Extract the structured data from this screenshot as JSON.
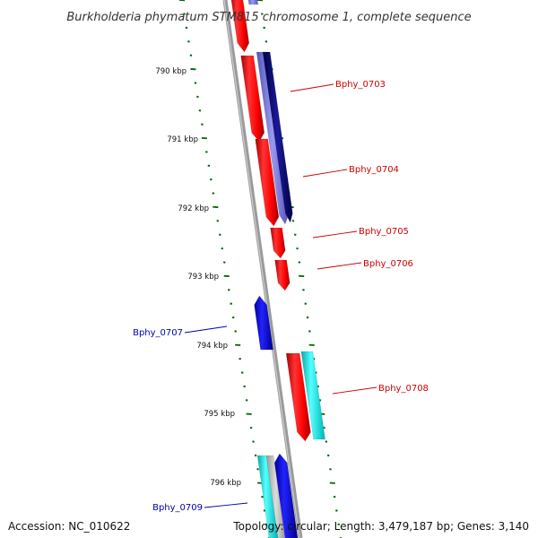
{
  "title": "Burkholderia phymatum STM815 chromosome 1, complete sequence",
  "accession_text": "Accession: NC_010622",
  "topology_text": "Topology: circular; Length: 3,479,187 bp; Genes: 3,140",
  "colors": {
    "forward_gene": "#ff0000",
    "forward_gene_dark": "#cc0000",
    "reverse_gene": "#0000ee",
    "cds_cyan": "#00e5e5",
    "cds_navy": "#000077",
    "cds_lavender": "#7777dd",
    "backbone": "#888888",
    "tick": "#006600",
    "forward_label": "#cc0000",
    "reverse_label": "#0000aa"
  },
  "kbp_labels": [
    "790 kbp",
    "791 kbp",
    "792 kbp",
    "793 kbp",
    "794 kbp",
    "795 kbp",
    "796 kbp"
  ],
  "gene_labels": [
    {
      "text": "Bphy_0703",
      "strand": "forward"
    },
    {
      "text": "Bphy_0704",
      "strand": "forward"
    },
    {
      "text": "Bphy_0705",
      "strand": "forward"
    },
    {
      "text": "Bphy_0706",
      "strand": "forward"
    },
    {
      "text": "Bphy_0707",
      "strand": "reverse"
    },
    {
      "text": "Bphy_0708",
      "strand": "forward"
    },
    {
      "text": "Bphy_0709",
      "strand": "reverse"
    }
  ]
}
